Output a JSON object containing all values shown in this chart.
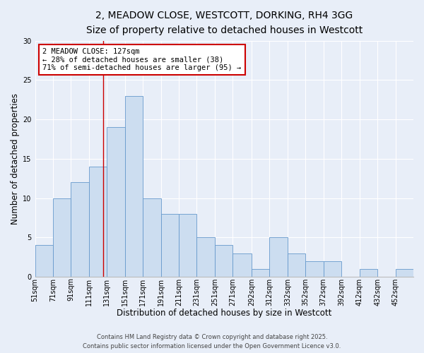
{
  "title": "2, MEADOW CLOSE, WESTCOTT, DORKING, RH4 3GG",
  "subtitle": "Size of property relative to detached houses in Westcott",
  "xlabel": "Distribution of detached houses by size in Westcott",
  "ylabel": "Number of detached properties",
  "bar_color": "#ccddf0",
  "bar_edge_color": "#6699cc",
  "bg_color": "#e8eef8",
  "grid_color": "#ffffff",
  "bin_edges": [
    51,
    71,
    91,
    111,
    131,
    151,
    171,
    191,
    211,
    231,
    251,
    271,
    292,
    312,
    332,
    352,
    372,
    392,
    412,
    432,
    452,
    472
  ],
  "bin_labels": [
    "51sqm",
    "71sqm",
    "91sqm",
    "111sqm",
    "131sqm",
    "151sqm",
    "171sqm",
    "191sqm",
    "211sqm",
    "231sqm",
    "251sqm",
    "271sqm",
    "292sqm",
    "312sqm",
    "332sqm",
    "352sqm",
    "372sqm",
    "392sqm",
    "412sqm",
    "432sqm",
    "452sqm"
  ],
  "counts": [
    4,
    10,
    12,
    14,
    19,
    23,
    10,
    8,
    8,
    5,
    4,
    3,
    1,
    5,
    3,
    2,
    2,
    0,
    1,
    0,
    1
  ],
  "ylim": [
    0,
    30
  ],
  "yticks": [
    0,
    5,
    10,
    15,
    20,
    25,
    30
  ],
  "property_line_x": 127,
  "property_line_color": "#cc0000",
  "annotation_title": "2 MEADOW CLOSE: 127sqm",
  "annotation_line1": "← 28% of detached houses are smaller (38)",
  "annotation_line2": "71% of semi-detached houses are larger (95) →",
  "annotation_box_color": "#ffffff",
  "annotation_box_edge_color": "#cc0000",
  "footer_line1": "Contains HM Land Registry data © Crown copyright and database right 2025.",
  "footer_line2": "Contains public sector information licensed under the Open Government Licence v3.0.",
  "title_fontsize": 10,
  "subtitle_fontsize": 9,
  "axis_label_fontsize": 8.5,
  "tick_label_fontsize": 7,
  "annotation_fontsize": 7.5,
  "footer_fontsize": 6
}
